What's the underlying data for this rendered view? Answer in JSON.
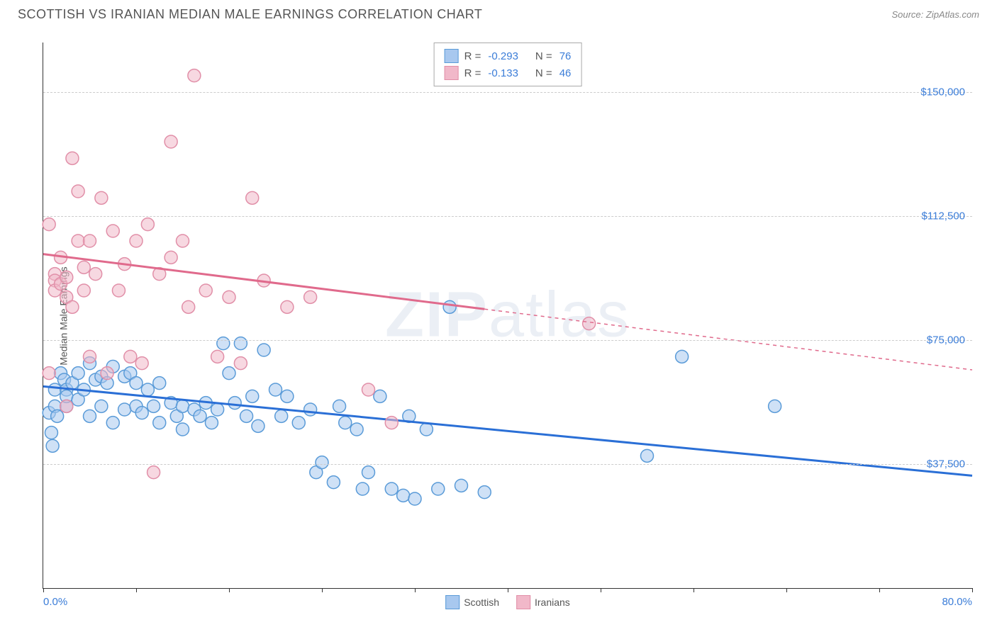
{
  "title": "SCOTTISH VS IRANIAN MEDIAN MALE EARNINGS CORRELATION CHART",
  "source": "Source: ZipAtlas.com",
  "ylabel": "Median Male Earnings",
  "watermark_bold": "ZIP",
  "watermark_light": "atlas",
  "chart": {
    "type": "scatter",
    "xlim": [
      0,
      80
    ],
    "ylim": [
      0,
      165000
    ],
    "x_tick_labels": [
      {
        "pos": 0,
        "label": "0.0%"
      },
      {
        "pos": 80,
        "label": "80.0%"
      }
    ],
    "x_ticks": [
      0,
      8,
      16,
      24,
      32,
      40,
      48,
      56,
      64,
      72,
      80
    ],
    "y_gridlines": [
      {
        "v": 150000,
        "label": "$150,000"
      },
      {
        "v": 112500,
        "label": "$112,500"
      },
      {
        "v": 75000,
        "label": "$75,000"
      },
      {
        "v": 37500,
        "label": "$37,500"
      }
    ],
    "grid_color": "#cccccc",
    "background_color": "#ffffff",
    "point_radius": 9,
    "point_opacity": 0.55,
    "line_width": 3,
    "series": [
      {
        "name": "Scottish",
        "color_fill": "#a8c8ef",
        "color_stroke": "#5a9bd8",
        "line_color": "#2a6fd6",
        "R": "-0.293",
        "N": "76",
        "trend": {
          "x1": 0,
          "y1": 61000,
          "x2": 80,
          "y2": 34000,
          "solid_until": 80
        },
        "points": [
          [
            0.5,
            53000
          ],
          [
            0.7,
            47000
          ],
          [
            0.8,
            43000
          ],
          [
            1,
            60000
          ],
          [
            1,
            55000
          ],
          [
            1.2,
            52000
          ],
          [
            1.5,
            65000
          ],
          [
            1.8,
            63000
          ],
          [
            2,
            60000
          ],
          [
            2,
            55000
          ],
          [
            2,
            58000
          ],
          [
            2.5,
            62000
          ],
          [
            3,
            65000
          ],
          [
            3,
            57000
          ],
          [
            3.5,
            60000
          ],
          [
            4,
            68000
          ],
          [
            4,
            52000
          ],
          [
            4.5,
            63000
          ],
          [
            5,
            64000
          ],
          [
            5,
            55000
          ],
          [
            5.5,
            62000
          ],
          [
            6,
            67000
          ],
          [
            6,
            50000
          ],
          [
            7,
            64000
          ],
          [
            7,
            54000
          ],
          [
            7.5,
            65000
          ],
          [
            8,
            55000
          ],
          [
            8,
            62000
          ],
          [
            8.5,
            53000
          ],
          [
            9,
            60000
          ],
          [
            9.5,
            55000
          ],
          [
            10,
            62000
          ],
          [
            10,
            50000
          ],
          [
            11,
            56000
          ],
          [
            11.5,
            52000
          ],
          [
            12,
            55000
          ],
          [
            12,
            48000
          ],
          [
            13,
            54000
          ],
          [
            13.5,
            52000
          ],
          [
            14,
            56000
          ],
          [
            14.5,
            50000
          ],
          [
            15,
            54000
          ],
          [
            15.5,
            74000
          ],
          [
            16,
            65000
          ],
          [
            16.5,
            56000
          ],
          [
            17,
            74000
          ],
          [
            17.5,
            52000
          ],
          [
            18,
            58000
          ],
          [
            18.5,
            49000
          ],
          [
            19,
            72000
          ],
          [
            20,
            60000
          ],
          [
            20.5,
            52000
          ],
          [
            21,
            58000
          ],
          [
            22,
            50000
          ],
          [
            23,
            54000
          ],
          [
            23.5,
            35000
          ],
          [
            24,
            38000
          ],
          [
            25,
            32000
          ],
          [
            25.5,
            55000
          ],
          [
            26,
            50000
          ],
          [
            27,
            48000
          ],
          [
            27.5,
            30000
          ],
          [
            28,
            35000
          ],
          [
            29,
            58000
          ],
          [
            30,
            30000
          ],
          [
            31,
            28000
          ],
          [
            31.5,
            52000
          ],
          [
            32,
            27000
          ],
          [
            33,
            48000
          ],
          [
            34,
            30000
          ],
          [
            35,
            85000
          ],
          [
            36,
            31000
          ],
          [
            38,
            29000
          ],
          [
            52,
            40000
          ],
          [
            55,
            70000
          ],
          [
            63,
            55000
          ]
        ]
      },
      {
        "name": "Iranians",
        "color_fill": "#f1b8c9",
        "color_stroke": "#e18fa8",
        "line_color": "#e06a8c",
        "R": "-0.133",
        "N": "46",
        "trend": {
          "x1": 0,
          "y1": 101000,
          "x2": 80,
          "y2": 66000,
          "solid_until": 38
        },
        "points": [
          [
            0.5,
            65000
          ],
          [
            0.5,
            110000
          ],
          [
            1,
            95000
          ],
          [
            1,
            93000
          ],
          [
            1,
            90000
          ],
          [
            1.5,
            100000
          ],
          [
            1.5,
            92000
          ],
          [
            2,
            94000
          ],
          [
            2,
            88000
          ],
          [
            2,
            55000
          ],
          [
            2.5,
            130000
          ],
          [
            2.5,
            85000
          ],
          [
            3,
            120000
          ],
          [
            3,
            105000
          ],
          [
            3.5,
            97000
          ],
          [
            3.5,
            90000
          ],
          [
            4,
            105000
          ],
          [
            4,
            70000
          ],
          [
            4.5,
            95000
          ],
          [
            5,
            118000
          ],
          [
            5.5,
            65000
          ],
          [
            6,
            108000
          ],
          [
            6.5,
            90000
          ],
          [
            7,
            98000
          ],
          [
            7.5,
            70000
          ],
          [
            8,
            105000
          ],
          [
            8.5,
            68000
          ],
          [
            9,
            110000
          ],
          [
            9.5,
            35000
          ],
          [
            10,
            95000
          ],
          [
            11,
            135000
          ],
          [
            11,
            100000
          ],
          [
            12,
            105000
          ],
          [
            12.5,
            85000
          ],
          [
            13,
            155000
          ],
          [
            14,
            90000
          ],
          [
            15,
            70000
          ],
          [
            16,
            88000
          ],
          [
            17,
            68000
          ],
          [
            18,
            118000
          ],
          [
            19,
            93000
          ],
          [
            21,
            85000
          ],
          [
            23,
            88000
          ],
          [
            28,
            60000
          ],
          [
            30,
            50000
          ],
          [
            47,
            80000
          ]
        ]
      }
    ]
  },
  "legend": {
    "items": [
      {
        "label": "Scottish",
        "fill": "#a8c8ef",
        "stroke": "#5a9bd8"
      },
      {
        "label": "Iranians",
        "fill": "#f1b8c9",
        "stroke": "#e18fa8"
      }
    ]
  }
}
